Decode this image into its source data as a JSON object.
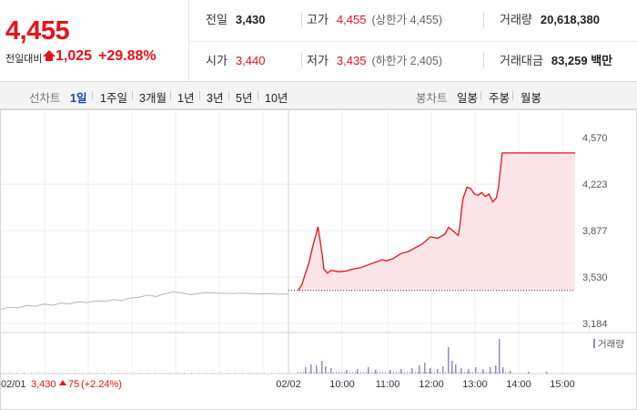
{
  "quote": {
    "price": "4,455",
    "prev_diff_label": "전일대비",
    "change_abs": "1,025",
    "change_pct": "+29.88%",
    "stats": {
      "prev_close": {
        "label": "전일",
        "value": "3,430"
      },
      "high": {
        "label": "고가",
        "value": "4,455",
        "limit": "(상한가 4,455)"
      },
      "volume": {
        "label": "거래량",
        "value": "20,618,380"
      },
      "open": {
        "label": "시가",
        "value": "3,440"
      },
      "low": {
        "label": "저가",
        "value": "3,435",
        "limit": "(하한가 2,405)"
      },
      "amount": {
        "label": "거래대금",
        "value": "83,259 백만"
      }
    },
    "colors": {
      "up": "#e7121b",
      "ref_line": "#333333",
      "area": "#fde4e6",
      "volume": "#9b87c2"
    }
  },
  "toolbar": {
    "line_chart_label": "선차트",
    "periods": [
      "1일",
      "1주일",
      "3개월",
      "1년",
      "3년",
      "5년",
      "10년"
    ],
    "active_period": "1일",
    "candle_label": "봉차트",
    "candle_periods": [
      "일봉",
      "주봉",
      "월봉"
    ]
  },
  "chart_data": {
    "type": "line",
    "title": "",
    "xlabel": "",
    "ylabel": "",
    "y_ticks": [
      "4,570",
      "4,223",
      "3,877",
      "3,530",
      "3,184"
    ],
    "ylim": [
      3184,
      4570
    ],
    "x_ticks": [
      "02/02",
      "10:00",
      "11:00",
      "12:00",
      "13:00",
      "14:00",
      "15:00"
    ],
    "reference_value": 3430,
    "grid": true,
    "series": [
      {
        "segment": "prev-day",
        "points": [
          [
            0.0,
            3290
          ],
          [
            0.03,
            3305
          ],
          [
            0.06,
            3300
          ],
          [
            0.09,
            3318
          ],
          [
            0.12,
            3312
          ],
          [
            0.15,
            3328
          ],
          [
            0.18,
            3320
          ],
          [
            0.21,
            3336
          ],
          [
            0.24,
            3330
          ],
          [
            0.27,
            3345
          ],
          [
            0.3,
            3338
          ],
          [
            0.33,
            3352
          ],
          [
            0.36,
            3350
          ],
          [
            0.39,
            3362
          ],
          [
            0.42,
            3356
          ],
          [
            0.45,
            3372
          ],
          [
            0.48,
            3380
          ],
          [
            0.51,
            3395
          ],
          [
            0.54,
            3385
          ],
          [
            0.57,
            3405
          ],
          [
            0.6,
            3420
          ],
          [
            0.63,
            3412
          ],
          [
            0.66,
            3398
          ],
          [
            0.69,
            3408
          ],
          [
            0.72,
            3414
          ],
          [
            0.75,
            3410
          ],
          [
            0.78,
            3408
          ],
          [
            0.81,
            3406
          ],
          [
            0.84,
            3410
          ],
          [
            0.87,
            3407
          ],
          [
            0.9,
            3404
          ],
          [
            0.93,
            3406
          ],
          [
            0.96,
            3403
          ],
          [
            1.0,
            3402
          ]
        ]
      },
      {
        "segment": "today",
        "points": [
          [
            "09:00",
            3430
          ],
          [
            "09:05",
            3470
          ],
          [
            "09:10",
            3560
          ],
          [
            "09:15",
            3640
          ],
          [
            "09:20",
            3760
          ],
          [
            "09:25",
            3860
          ],
          [
            "09:27",
            3905
          ],
          [
            "09:30",
            3800
          ],
          [
            "09:33",
            3690
          ],
          [
            "09:35",
            3590
          ],
          [
            "09:40",
            3560
          ],
          [
            "09:45",
            3580
          ],
          [
            "09:55",
            3570
          ],
          [
            "10:05",
            3575
          ],
          [
            "10:15",
            3590
          ],
          [
            "10:25",
            3600
          ],
          [
            "10:35",
            3620
          ],
          [
            "10:45",
            3640
          ],
          [
            "10:55",
            3660
          ],
          [
            "11:00",
            3650
          ],
          [
            "11:10",
            3670
          ],
          [
            "11:20",
            3705
          ],
          [
            "11:30",
            3720
          ],
          [
            "11:40",
            3750
          ],
          [
            "11:50",
            3780
          ],
          [
            "12:00",
            3830
          ],
          [
            "12:10",
            3820
          ],
          [
            "12:20",
            3850
          ],
          [
            "12:25",
            3900
          ],
          [
            "12:30",
            3880
          ],
          [
            "12:38",
            3840
          ],
          [
            "12:40",
            3900
          ],
          [
            "12:43",
            4050
          ],
          [
            "12:45",
            4120
          ],
          [
            "12:50",
            4200
          ],
          [
            "12:55",
            4190
          ],
          [
            "13:00",
            4150
          ],
          [
            "13:05",
            4140
          ],
          [
            "13:10",
            4160
          ],
          [
            "13:15",
            4130
          ],
          [
            "13:20",
            4150
          ],
          [
            "13:25",
            4090
          ],
          [
            "13:30",
            4120
          ],
          [
            "13:33",
            4200
          ],
          [
            "13:35",
            4300
          ],
          [
            "13:38",
            4455
          ],
          [
            "15:30",
            4455
          ]
        ]
      }
    ],
    "volume_legend": "거래량",
    "footer": {
      "date": "02/01",
      "close": "3,430",
      "change": "75",
      "pct": "(+2.24%)"
    }
  }
}
